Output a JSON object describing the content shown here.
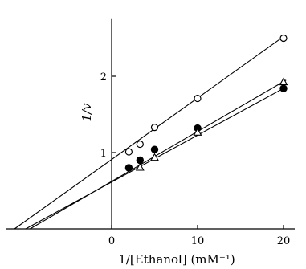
{
  "chart_data": {
    "type": "scatter",
    "title": "",
    "xlabel": "1/[Ethanol] (mM⁻¹)",
    "ylabel": "1/v",
    "xlim": [
      -12,
      22
    ],
    "ylim": [
      0,
      2.75
    ],
    "x_ticks": [
      0,
      10,
      20
    ],
    "y_ticks": [
      1,
      2
    ],
    "x_tick_labels": [
      "0",
      "10",
      "20"
    ],
    "y_tick_labels": [
      "1",
      "2"
    ],
    "grid": false,
    "legend": "none",
    "series": [
      {
        "marker": "open-circle",
        "x": [
          2,
          3.3,
          5,
          10,
          20
        ],
        "y": [
          1.01,
          1.11,
          1.33,
          1.71,
          2.5
        ],
        "fit": {
          "x_start": -11.3,
          "x_end": 20,
          "y_start": 0.0,
          "y_end": 2.52
        }
      },
      {
        "marker": "filled-circle",
        "x": [
          2,
          3.3,
          5,
          10,
          20
        ],
        "y": [
          0.8,
          0.9,
          1.04,
          1.32,
          1.84
        ],
        "fit": {
          "x_start": -10.0,
          "x_end": 20.3,
          "y_start": 0.0,
          "y_end": 1.86
        }
      },
      {
        "marker": "open-triangle",
        "x": [
          3.3,
          5,
          10,
          20
        ],
        "y": [
          0.8,
          0.93,
          1.26,
          1.92
        ],
        "fit": {
          "x_start": -9.5,
          "x_end": 20.3,
          "y_start": 0.0,
          "y_end": 1.95
        }
      }
    ]
  }
}
